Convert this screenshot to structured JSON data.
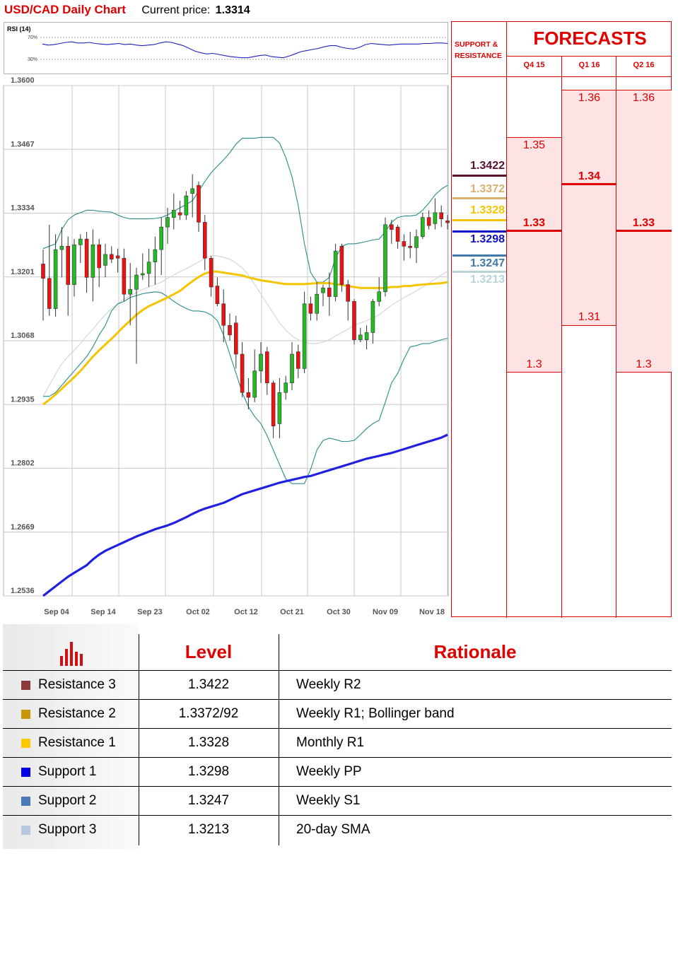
{
  "header": {
    "title": "USD/CAD Daily Chart",
    "price_label": "Current price:",
    "price_value": "1.3314"
  },
  "rsi": {
    "label": "RSI (14)",
    "level_high": "70%",
    "level_low": "30%",
    "values": [
      58,
      56,
      57,
      59,
      61,
      62,
      60,
      60,
      61,
      59,
      58,
      57,
      58,
      59,
      57,
      58,
      56,
      55,
      56,
      57,
      60,
      62,
      61,
      58,
      55,
      50,
      45,
      42,
      40,
      41,
      39,
      37,
      35,
      34,
      33,
      33,
      35,
      37,
      38,
      35,
      34,
      33,
      36,
      40,
      44,
      46,
      48,
      50,
      53,
      55,
      55,
      52,
      50,
      49,
      52,
      57,
      59,
      58,
      57,
      56,
      57,
      58,
      58,
      58,
      58,
      59,
      59,
      60,
      60,
      59
    ]
  },
  "chart_data": {
    "type": "candlestick",
    "title": "USD/CAD Daily Chart",
    "ylim": [
      1.2536,
      1.36
    ],
    "y_ticks": [
      "1.3600",
      "1.3467",
      "1.3334",
      "1.3201",
      "1.3068",
      "1.2935",
      "1.2802",
      "1.2669",
      "1.2536"
    ],
    "x_ticks": [
      {
        "label": "Sep 04",
        "index": 1
      },
      {
        "label": "Sep 14",
        "index": 6
      },
      {
        "label": "Sep 23",
        "index": 11
      },
      {
        "label": "Oct 02",
        "index": 16
      },
      {
        "label": "Oct 12",
        "index": 21
      },
      {
        "label": "Oct 21",
        "index": 26
      },
      {
        "label": "Oct 30",
        "index": 31
      },
      {
        "label": "Nov 09",
        "index": 36
      },
      {
        "label": "Nov 18",
        "index": 41
      }
    ],
    "ohlc": [
      {
        "o": 1.3228,
        "h": 1.3258,
        "l": 1.311,
        "c": 1.3198
      },
      {
        "o": 1.3198,
        "h": 1.331,
        "l": 1.312,
        "c": 1.3135
      },
      {
        "o": 1.3135,
        "h": 1.329,
        "l": 1.3118,
        "c": 1.3258
      },
      {
        "o": 1.3258,
        "h": 1.3305,
        "l": 1.32,
        "c": 1.3265
      },
      {
        "o": 1.3265,
        "h": 1.3285,
        "l": 1.312,
        "c": 1.3185
      },
      {
        "o": 1.3185,
        "h": 1.328,
        "l": 1.316,
        "c": 1.3268
      },
      {
        "o": 1.3268,
        "h": 1.329,
        "l": 1.323,
        "c": 1.328
      },
      {
        "o": 1.328,
        "h": 1.3295,
        "l": 1.3168,
        "c": 1.32
      },
      {
        "o": 1.32,
        "h": 1.33,
        "l": 1.315,
        "c": 1.3268
      },
      {
        "o": 1.3268,
        "h": 1.328,
        "l": 1.318,
        "c": 1.322
      },
      {
        "o": 1.3225,
        "h": 1.327,
        "l": 1.32,
        "c": 1.3248
      },
      {
        "o": 1.3248,
        "h": 1.3265,
        "l": 1.323,
        "c": 1.3238
      },
      {
        "o": 1.3245,
        "h": 1.326,
        "l": 1.321,
        "c": 1.324
      },
      {
        "o": 1.324,
        "h": 1.326,
        "l": 1.315,
        "c": 1.3165
      },
      {
        "o": 1.3165,
        "h": 1.323,
        "l": 1.31,
        "c": 1.3175
      },
      {
        "o": 1.3175,
        "h": 1.322,
        "l": 1.302,
        "c": 1.3205
      },
      {
        "o": 1.3205,
        "h": 1.325,
        "l": 1.3195,
        "c": 1.3208
      },
      {
        "o": 1.3208,
        "h": 1.326,
        "l": 1.318,
        "c": 1.3232
      },
      {
        "o": 1.3232,
        "h": 1.3285,
        "l": 1.3185,
        "c": 1.3258
      },
      {
        "o": 1.3258,
        "h": 1.3325,
        "l": 1.3205,
        "c": 1.3305
      },
      {
        "o": 1.3305,
        "h": 1.3345,
        "l": 1.327,
        "c": 1.3325
      },
      {
        "o": 1.3325,
        "h": 1.3375,
        "l": 1.33,
        "c": 1.334
      },
      {
        "o": 1.3335,
        "h": 1.336,
        "l": 1.332,
        "c": 1.333
      },
      {
        "o": 1.333,
        "h": 1.338,
        "l": 1.332,
        "c": 1.337
      },
      {
        "o": 1.3375,
        "h": 1.3415,
        "l": 1.3325,
        "c": 1.3385
      },
      {
        "o": 1.3392,
        "h": 1.34,
        "l": 1.3295,
        "c": 1.3315
      },
      {
        "o": 1.3315,
        "h": 1.333,
        "l": 1.3215,
        "c": 1.324
      },
      {
        "o": 1.324,
        "h": 1.3245,
        "l": 1.316,
        "c": 1.318
      },
      {
        "o": 1.3182,
        "h": 1.32,
        "l": 1.314,
        "c": 1.3145
      },
      {
        "o": 1.3145,
        "h": 1.3175,
        "l": 1.3065,
        "c": 1.31
      },
      {
        "o": 1.31,
        "h": 1.3125,
        "l": 1.3068,
        "c": 1.308
      },
      {
        "o": 1.3105,
        "h": 1.312,
        "l": 1.301,
        "c": 1.304
      },
      {
        "o": 1.304,
        "h": 1.3065,
        "l": 1.295,
        "c": 1.296
      },
      {
        "o": 1.296,
        "h": 1.299,
        "l": 1.2925,
        "c": 1.295
      },
      {
        "o": 1.295,
        "h": 1.305,
        "l": 1.294,
        "c": 1.3005
      },
      {
        "o": 1.3005,
        "h": 1.3065,
        "l": 1.298,
        "c": 1.304
      },
      {
        "o": 1.3045,
        "h": 1.3055,
        "l": 1.2955,
        "c": 1.298
      },
      {
        "o": 1.298,
        "h": 1.2985,
        "l": 1.2865,
        "c": 1.289
      },
      {
        "o": 1.2895,
        "h": 1.299,
        "l": 1.2865,
        "c": 1.296
      },
      {
        "o": 1.296,
        "h": 1.2995,
        "l": 1.2945,
        "c": 1.298
      },
      {
        "o": 1.298,
        "h": 1.3065,
        "l": 1.2965,
        "c": 1.304
      },
      {
        "o": 1.3045,
        "h": 1.306,
        "l": 1.299,
        "c": 1.301
      },
      {
        "o": 1.301,
        "h": 1.317,
        "l": 1.3,
        "c": 1.3145
      },
      {
        "o": 1.3145,
        "h": 1.316,
        "l": 1.311,
        "c": 1.3125
      },
      {
        "o": 1.3125,
        "h": 1.319,
        "l": 1.311,
        "c": 1.3165
      },
      {
        "o": 1.3168,
        "h": 1.3185,
        "l": 1.314,
        "c": 1.3178
      },
      {
        "o": 1.3178,
        "h": 1.321,
        "l": 1.312,
        "c": 1.316
      },
      {
        "o": 1.316,
        "h": 1.327,
        "l": 1.315,
        "c": 1.3255
      },
      {
        "o": 1.3265,
        "h": 1.327,
        "l": 1.317,
        "c": 1.3185
      },
      {
        "o": 1.3185,
        "h": 1.3195,
        "l": 1.311,
        "c": 1.315
      },
      {
        "o": 1.315,
        "h": 1.3155,
        "l": 1.306,
        "c": 1.307
      },
      {
        "o": 1.307,
        "h": 1.3095,
        "l": 1.3065,
        "c": 1.308
      },
      {
        "o": 1.307,
        "h": 1.31,
        "l": 1.305,
        "c": 1.3085
      },
      {
        "o": 1.3085,
        "h": 1.3155,
        "l": 1.3062,
        "c": 1.315
      },
      {
        "o": 1.315,
        "h": 1.32,
        "l": 1.314,
        "c": 1.317
      },
      {
        "o": 1.317,
        "h": 1.3325,
        "l": 1.316,
        "c": 1.331
      },
      {
        "o": 1.331,
        "h": 1.332,
        "l": 1.327,
        "c": 1.33
      },
      {
        "o": 1.3305,
        "h": 1.331,
        "l": 1.326,
        "c": 1.3275
      },
      {
        "o": 1.3275,
        "h": 1.329,
        "l": 1.3235,
        "c": 1.3265
      },
      {
        "o": 1.3265,
        "h": 1.3295,
        "l": 1.324,
        "c": 1.3262
      },
      {
        "o": 1.3262,
        "h": 1.33,
        "l": 1.323,
        "c": 1.3285
      },
      {
        "o": 1.3285,
        "h": 1.3335,
        "l": 1.328,
        "c": 1.3325
      },
      {
        "o": 1.3325,
        "h": 1.334,
        "l": 1.33,
        "c": 1.3308
      },
      {
        "o": 1.3312,
        "h": 1.3365,
        "l": 1.33,
        "c": 1.3335
      },
      {
        "o": 1.3335,
        "h": 1.335,
        "l": 1.3305,
        "c": 1.3322
      },
      {
        "o": 1.3318,
        "h": 1.333,
        "l": 1.33,
        "c": 1.3314
      }
    ],
    "sma20": [
      1.2952,
      1.2975,
      1.2998,
      1.302,
      1.3035,
      1.3048,
      1.3062,
      1.3078,
      1.3092,
      1.3108,
      1.3122,
      1.3135,
      1.3145,
      1.3155,
      1.3162,
      1.3168,
      1.3175,
      1.318,
      1.3185,
      1.319,
      1.3198,
      1.3205,
      1.3212,
      1.3218,
      1.3225,
      1.3232,
      1.324,
      1.3245,
      1.3245,
      1.3242,
      1.3238,
      1.323,
      1.322,
      1.3205,
      1.3185,
      1.3165,
      1.3145,
      1.3125,
      1.3105,
      1.309,
      1.3078,
      1.307,
      1.3065,
      1.3062,
      1.3062,
      1.3065,
      1.307,
      1.3078,
      1.3085,
      1.3092,
      1.31,
      1.3105,
      1.311,
      1.3115,
      1.3122,
      1.3132,
      1.3142,
      1.315,
      1.3158,
      1.3165,
      1.3172,
      1.318,
      1.3188,
      1.3196,
      1.3205,
      1.3213
    ],
    "sma50": [
      1.2935,
      1.2945,
      1.2956,
      1.2968,
      1.298,
      1.2992,
      1.3005,
      1.302,
      1.3035,
      1.3048,
      1.306,
      1.3072,
      1.3085,
      1.3098,
      1.311,
      1.3122,
      1.3132,
      1.314,
      1.3146,
      1.3152,
      1.3158,
      1.3165,
      1.3172,
      1.3182,
      1.3192,
      1.3201,
      1.3208,
      1.3212,
      1.3212,
      1.321,
      1.3208,
      1.3206,
      1.3204,
      1.32,
      1.3197,
      1.3194,
      1.3192,
      1.319,
      1.3188,
      1.3186,
      1.3186,
      1.3186,
      1.3186,
      1.3187,
      1.3188,
      1.3188,
      1.3188,
      1.3186,
      1.3184,
      1.3182,
      1.318,
      1.3178,
      1.3178,
      1.3178,
      1.3178,
      1.3178,
      1.318,
      1.318,
      1.3182,
      1.3182,
      1.3184,
      1.3185,
      1.3186,
      1.3187,
      1.3188,
      1.319
    ],
    "sma200": [
      1.2536,
      1.2546,
      1.2556,
      1.2566,
      1.2576,
      1.2584,
      1.2592,
      1.26,
      1.2612,
      1.2622,
      1.263,
      1.2636,
      1.2642,
      1.2648,
      1.2654,
      1.266,
      1.2665,
      1.267,
      1.2675,
      1.2679,
      1.2683,
      1.2688,
      1.2694,
      1.27,
      1.2707,
      1.2713,
      1.2718,
      1.2722,
      1.2726,
      1.273,
      1.2736,
      1.2742,
      1.2748,
      1.2752,
      1.2756,
      1.276,
      1.2764,
      1.2768,
      1.2772,
      1.2775,
      1.2778,
      1.2781,
      1.2784,
      1.2786,
      1.279,
      1.2794,
      1.2798,
      1.2802,
      1.2806,
      1.281,
      1.2814,
      1.2818,
      1.2822,
      1.2825,
      1.2828,
      1.2831,
      1.2834,
      1.2838,
      1.2842,
      1.2846,
      1.285,
      1.2854,
      1.2858,
      1.2862,
      1.2866,
      1.2872
    ],
    "bb_upper": [
      1.326,
      1.3265,
      1.327,
      1.33,
      1.332,
      1.333,
      1.3335,
      1.334,
      1.334,
      1.3338,
      1.3337,
      1.3336,
      1.333,
      1.3325,
      1.3322,
      1.3322,
      1.3322,
      1.3322,
      1.3323,
      1.3325,
      1.333,
      1.3338,
      1.3345,
      1.3352,
      1.336,
      1.338,
      1.34,
      1.3418,
      1.3432,
      1.3445,
      1.346,
      1.3478,
      1.349,
      1.349,
      1.349,
      1.3492,
      1.3492,
      1.3492,
      1.348,
      1.345,
      1.341,
      1.335,
      1.327,
      1.321,
      1.319,
      1.319,
      1.32,
      1.324,
      1.3265,
      1.327,
      1.327,
      1.3272,
      1.3275,
      1.3278,
      1.328,
      1.3295,
      1.3315,
      1.3325,
      1.3328,
      1.3328,
      1.333,
      1.334,
      1.3355,
      1.3372,
      1.3384,
      1.3392
    ],
    "bb_lower": [
      1.2952,
      1.2952,
      1.296,
      1.2975,
      1.299,
      1.3005,
      1.302,
      1.3035,
      1.3055,
      1.308,
      1.31,
      1.313,
      1.3145,
      1.315,
      1.3158,
      1.3162,
      1.3166,
      1.3168,
      1.317,
      1.3168,
      1.316,
      1.315,
      1.3142,
      1.3135,
      1.313,
      1.313,
      1.3128,
      1.3122,
      1.311,
      1.308,
      1.304,
      1.3,
      1.296,
      1.293,
      1.291,
      1.2895,
      1.287,
      1.284,
      1.281,
      1.278,
      1.277,
      1.277,
      1.277,
      1.28,
      1.284,
      1.286,
      1.2865,
      1.2862,
      1.2858,
      1.2858,
      1.286,
      1.2872,
      1.2885,
      1.2895,
      1.2902,
      1.294,
      1.298,
      1.3,
      1.303,
      1.3055,
      1.3058,
      1.3062,
      1.3062,
      1.3066,
      1.307,
      1.3073
    ]
  },
  "forecast": {
    "title": "FORECASTS",
    "sr_header": "SUPPORT & RESISTANCE",
    "quarters": [
      "Q4 15",
      "Q1 16",
      "Q2 16"
    ],
    "levels": [
      {
        "value": "1.3422",
        "color": "#5a0f2e"
      },
      {
        "value": "1.3372",
        "color": "#d8b070"
      },
      {
        "value": "1.3328",
        "color": "#f5c400"
      },
      {
        "value": "1.3298",
        "color": "#1010c8"
      },
      {
        "value": "1.3247",
        "color": "#3f79a8"
      },
      {
        "value": "1.3213",
        "color": "#b8d4d8"
      }
    ],
    "q4_15": {
      "high": "1.35",
      "mid": "1.33",
      "low": "1.3"
    },
    "q1_16": {
      "high": "1.36",
      "mid": "1.34",
      "low": "1.31"
    },
    "q2_16": {
      "high": "1.36",
      "mid": "1.33",
      "low": "1.3"
    }
  },
  "table": {
    "header_level": "Level",
    "header_rationale": "Rationale",
    "rows": [
      {
        "label": "Resistance 3",
        "level": "1.3422",
        "rationale": "Weekly R2",
        "color": "#8b3a3a"
      },
      {
        "label": "Resistance 2",
        "level": "1.3372/92",
        "rationale": "Weekly R1; Bollinger band",
        "color": "#c8960a"
      },
      {
        "label": "Resistance 1",
        "level": "1.3328",
        "rationale": "Monthly R1",
        "color": "#ffc800"
      },
      {
        "label": "Support 1",
        "level": "1.3298",
        "rationale": "Weekly PP",
        "color": "#0000e0"
      },
      {
        "label": "Support 2",
        "level": "1.3247",
        "rationale": "Weekly S1",
        "color": "#4a7ab8"
      },
      {
        "label": "Support 3",
        "level": "1.3213",
        "rationale": "20-day SMA",
        "color": "#b8c8e0"
      }
    ]
  }
}
